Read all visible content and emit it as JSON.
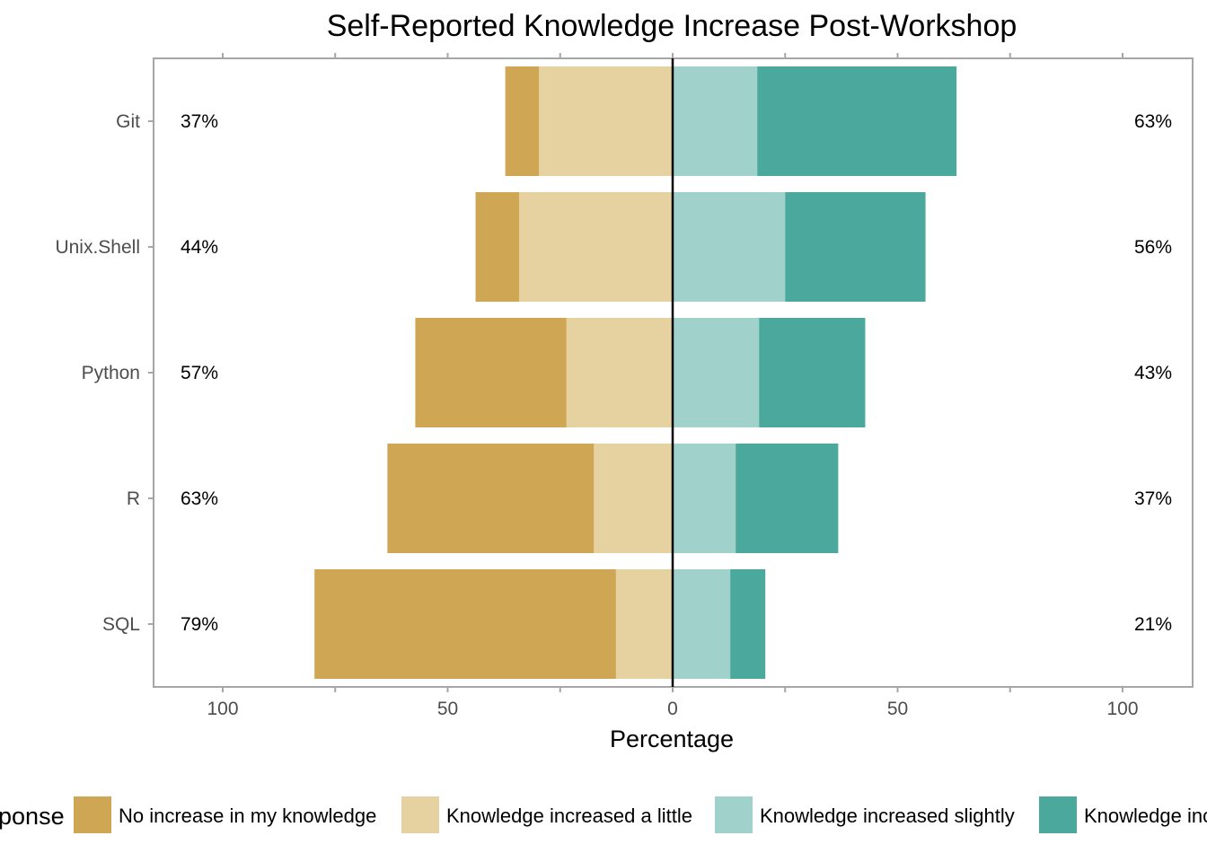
{
  "chart_data": {
    "type": "bar",
    "orientation": "horizontal-diverging",
    "title": "Self-Reported Knowledge Increase Post-Workshop",
    "xlabel": "Percentage",
    "ylabel": "",
    "xlim": [
      -115,
      115
    ],
    "x_ticks": [
      -100,
      -50,
      0,
      50,
      100
    ],
    "x_tick_labels": [
      "100",
      "50",
      "0",
      "50",
      "100"
    ],
    "grid": false,
    "legend_position": "bottom",
    "legend_title": "Response",
    "categories": [
      "Git",
      "Unix.Shell",
      "Python",
      "R",
      "SQL"
    ],
    "series": [
      {
        "name": "No increase in my knowledge",
        "color": "#CFA654",
        "side": "left",
        "values": [
          7.5,
          9.7,
          33.6,
          45.9,
          67.0
        ]
      },
      {
        "name": "Knowledge increased a little",
        "color": "#E6D2A1",
        "side": "left",
        "values": [
          29.7,
          34.1,
          23.6,
          17.5,
          12.6
        ]
      },
      {
        "name": "Knowledge increased slightly",
        "color": "#A0D2CB",
        "side": "right",
        "values": [
          18.8,
          25.0,
          19.2,
          14.0,
          12.8
        ]
      },
      {
        "name": "Knowledge increased greatly",
        "color": "#4BA89C",
        "side": "right",
        "values": [
          44.3,
          31.2,
          23.6,
          22.8,
          7.8
        ]
      }
    ],
    "left_totals": [
      "37%",
      "44%",
      "57%",
      "63%",
      "79%"
    ],
    "right_totals": [
      "63%",
      "56%",
      "43%",
      "37%",
      "21%"
    ]
  }
}
